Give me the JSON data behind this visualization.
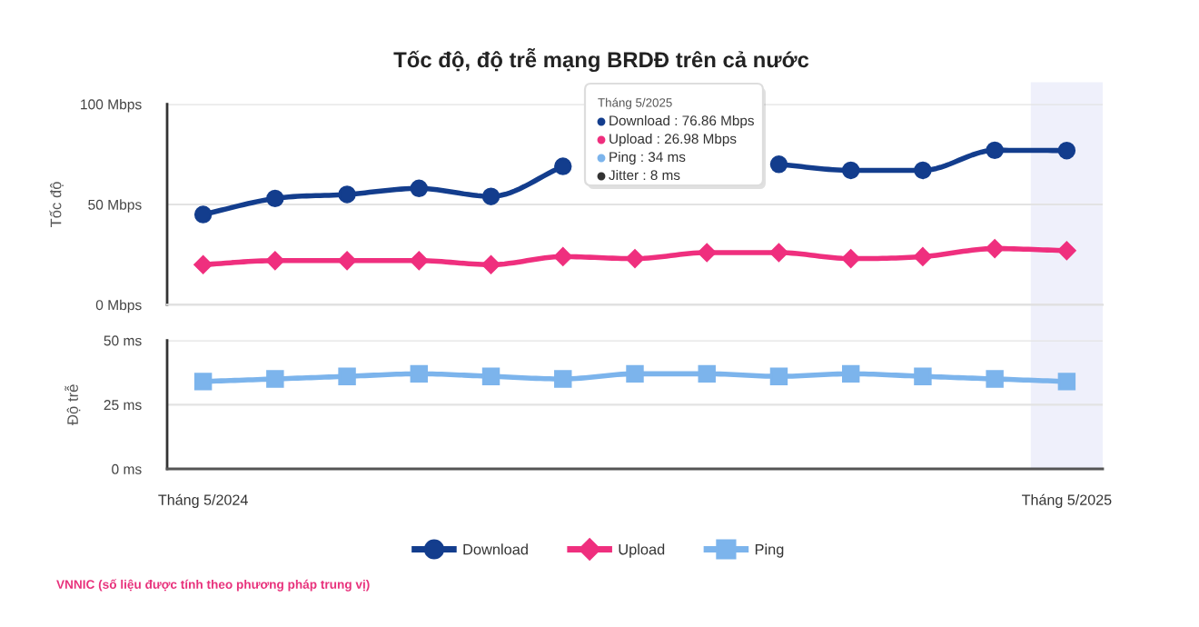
{
  "chart_data": [
    {
      "type": "line",
      "title": "Tốc độ, độ trễ mạng BRDĐ trên cả nước",
      "ylabel": "Tốc độ",
      "categories": [
        "Tháng 5/2024",
        null,
        null,
        null,
        null,
        null,
        null,
        null,
        null,
        null,
        null,
        null,
        "Tháng 5/2025"
      ],
      "series": [
        {
          "name": "Download",
          "color": "#133d8d",
          "marker": "circle",
          "values": [
            45,
            53,
            55,
            58,
            54,
            69,
            null,
            null,
            70,
            67,
            67,
            77,
            76.86
          ]
        },
        {
          "name": "Upload",
          "color": "#ef2f7e",
          "marker": "diamond",
          "values": [
            20,
            22,
            22,
            22,
            20,
            24,
            23,
            26,
            26,
            23,
            24,
            28,
            26.98
          ]
        }
      ],
      "ylim": [
        0,
        100
      ],
      "yticks": [
        {
          "value": 0,
          "label": "0 Mbps"
        },
        {
          "value": 50,
          "label": "50 Mbps"
        },
        {
          "value": 100,
          "label": "100 Mbps"
        }
      ],
      "grid": "y",
      "legend": "bottom",
      "tick_labels": "y",
      "bands": [
        {
          "axis": "x",
          "from": "Tháng 5/2025",
          "to": "Tháng 5/2025",
          "color": "#eff0fb"
        }
      ],
      "annotations": [
        "Tháng 5/2025",
        "Download : 76.86 Mbps",
        "Upload : 26.98 Mbps",
        "Ping : 34 ms",
        "Jitter : 8 ms"
      ]
    },
    {
      "type": "line",
      "ylabel": "Độ trễ",
      "categories": [
        "Tháng 5/2024",
        null,
        null,
        null,
        null,
        null,
        null,
        null,
        null,
        null,
        null,
        null,
        "Tháng 5/2025"
      ],
      "series": [
        {
          "name": "Ping",
          "color": "#7cb4ec",
          "marker": "square",
          "values": [
            34,
            35,
            36,
            37,
            36,
            35,
            37,
            37,
            36,
            37,
            36,
            35,
            34
          ]
        }
      ],
      "ylim": [
        0,
        50
      ],
      "yticks": [
        {
          "value": 0,
          "label": "0 ms"
        },
        {
          "value": 25,
          "label": "25 ms"
        },
        {
          "value": 50,
          "label": "50 ms"
        }
      ],
      "grid": "y",
      "legend": "bottom",
      "bands": [
        {
          "axis": "x",
          "from": "Tháng 5/2025",
          "to": "Tháng 5/2025",
          "color": "#eff0fb"
        }
      ],
      "annotations": [
        "VNNIC (số liệu được tính theo phương pháp trung vị)"
      ]
    }
  ]
}
